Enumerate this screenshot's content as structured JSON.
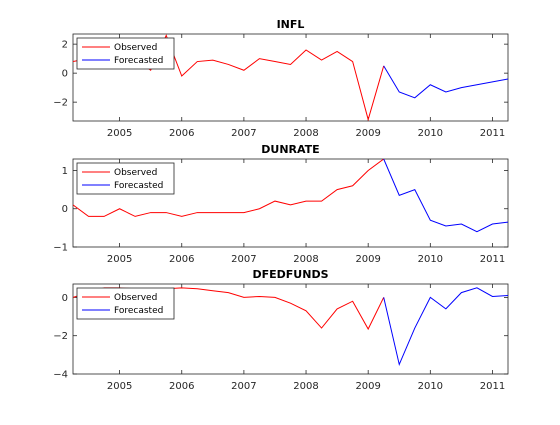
{
  "chart_data": [
    {
      "type": "line",
      "title": "INFL",
      "xlim": [
        2004.25,
        2011.25
      ],
      "ylim": [
        -3.3,
        2.7
      ],
      "yticks": [
        -2,
        0,
        2
      ],
      "xticks": [
        2005,
        2006,
        2007,
        2008,
        2009,
        2010,
        2011
      ],
      "legend_position": "top-left",
      "series": [
        {
          "name": "Observed",
          "color": "#ff0000",
          "x": [
            2004.25,
            2004.5,
            2004.75,
            2005.0,
            2005.25,
            2005.5,
            2005.75,
            2006.0,
            2006.25,
            2006.5,
            2006.75,
            2007.0,
            2007.25,
            2007.5,
            2007.75,
            2008.0,
            2008.25,
            2008.5,
            2008.75,
            2009.0,
            2009.25
          ],
          "y": [
            0.8,
            1.0,
            0.8,
            1.2,
            1.0,
            0.2,
            2.6,
            -0.2,
            0.8,
            0.9,
            0.6,
            0.2,
            1.0,
            0.8,
            0.6,
            1.6,
            0.9,
            1.5,
            0.8,
            -3.2,
            0.5
          ]
        },
        {
          "name": "Forecasted",
          "color": "#0000ff",
          "x": [
            2009.25,
            2009.5,
            2009.75,
            2010.0,
            2010.25,
            2010.5,
            2010.75,
            2011.0,
            2011.25
          ],
          "y": [
            0.5,
            -1.3,
            -1.7,
            -0.8,
            -1.3,
            -1.0,
            -0.8,
            -0.6,
            -0.4
          ]
        }
      ]
    },
    {
      "type": "line",
      "title": "DUNRATE",
      "xlim": [
        2004.25,
        2011.25
      ],
      "ylim": [
        -1,
        1.3
      ],
      "yticks": [
        -1,
        0,
        1
      ],
      "xticks": [
        2005,
        2006,
        2007,
        2008,
        2009,
        2010,
        2011
      ],
      "legend_position": "top-left",
      "series": [
        {
          "name": "Observed",
          "color": "#ff0000",
          "x": [
            2004.25,
            2004.5,
            2004.75,
            2005.0,
            2005.25,
            2005.5,
            2005.75,
            2006.0,
            2006.25,
            2006.5,
            2006.75,
            2007.0,
            2007.25,
            2007.5,
            2007.75,
            2008.0,
            2008.25,
            2008.5,
            2008.75,
            2009.0,
            2009.25
          ],
          "y": [
            0.1,
            -0.2,
            -0.2,
            0.0,
            -0.2,
            -0.1,
            -0.1,
            -0.2,
            -0.1,
            -0.1,
            -0.1,
            -0.1,
            0.0,
            0.2,
            0.1,
            0.2,
            0.2,
            0.5,
            0.6,
            1.0,
            1.3
          ]
        },
        {
          "name": "Forecasted",
          "color": "#0000ff",
          "x": [
            2009.25,
            2009.5,
            2009.75,
            2010.0,
            2010.25,
            2010.5,
            2010.75,
            2011.0,
            2011.25
          ],
          "y": [
            1.3,
            0.35,
            0.5,
            -0.3,
            -0.45,
            -0.4,
            -0.6,
            -0.4,
            -0.35
          ]
        }
      ]
    },
    {
      "type": "line",
      "title": "DFEDFUNDS",
      "xlim": [
        2004.25,
        2011.25
      ],
      "ylim": [
        -4,
        0.7
      ],
      "yticks": [
        -4,
        -2,
        0
      ],
      "xticks": [
        2005,
        2006,
        2007,
        2008,
        2009,
        2010,
        2011
      ],
      "legend_position": "top-left",
      "series": [
        {
          "name": "Observed",
          "color": "#ff0000",
          "x": [
            2004.25,
            2004.5,
            2004.75,
            2005.0,
            2005.25,
            2005.5,
            2005.75,
            2006.0,
            2006.25,
            2006.5,
            2006.75,
            2007.0,
            2007.25,
            2007.5,
            2007.75,
            2008.0,
            2008.25,
            2008.5,
            2008.75,
            2009.0,
            2009.25
          ],
          "y": [
            0.0,
            0.25,
            0.5,
            0.5,
            0.45,
            0.45,
            0.45,
            0.5,
            0.45,
            0.35,
            0.25,
            0.0,
            0.05,
            0.0,
            -0.3,
            -0.7,
            -1.6,
            -0.6,
            -0.2,
            -1.65,
            0.0
          ]
        },
        {
          "name": "Forecasted",
          "color": "#0000ff",
          "x": [
            2009.25,
            2009.5,
            2009.75,
            2010.0,
            2010.25,
            2010.5,
            2010.75,
            2011.0,
            2011.25
          ],
          "y": [
            0.0,
            -3.5,
            -1.6,
            0.0,
            -0.6,
            0.25,
            0.5,
            0.05,
            0.1
          ]
        }
      ]
    }
  ]
}
